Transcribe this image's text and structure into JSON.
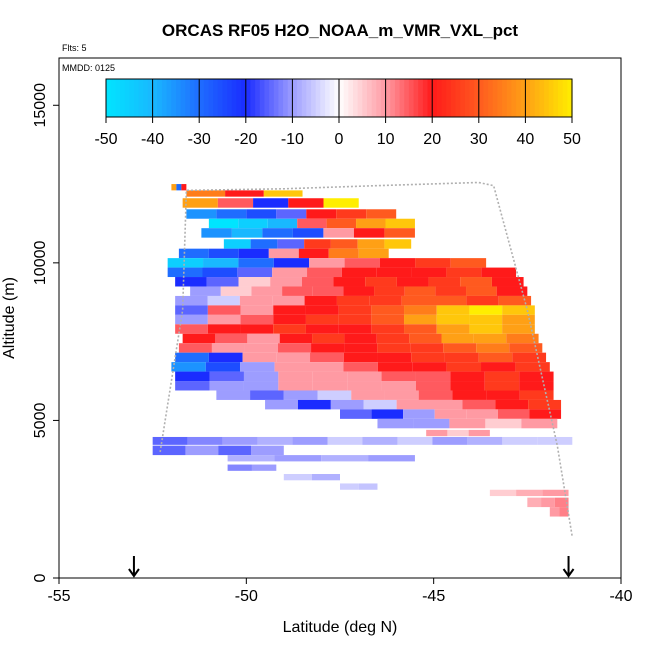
{
  "chart_data": {
    "type": "heatmap",
    "title": "ORCAS RF05 H2O_NOAA_m_VMR_VXL_pct",
    "subtitle_flights": "Flts: 5",
    "subtitle_date": "MMDD: 0125",
    "xlabel": "Latitude (deg N)",
    "ylabel": "Altitude (m)",
    "xlim": [
      -55,
      -40
    ],
    "ylim": [
      0,
      16500
    ],
    "x_ticks": [
      -55,
      -50,
      -45,
      -40
    ],
    "y_ticks": [
      0,
      5000,
      10000,
      15000
    ],
    "x_tick_labels": [
      "-55",
      "-50",
      "-45",
      "-40"
    ],
    "y_tick_labels": [
      "0",
      "5000",
      "10000",
      "15000"
    ],
    "colorbar": {
      "range": [
        -50,
        50
      ],
      "ticks": [
        -50,
        -40,
        -30,
        -20,
        -10,
        0,
        10,
        20,
        30,
        40,
        50
      ],
      "tick_labels": [
        "-50",
        "-40",
        "-30",
        "-20",
        "-10",
        "0",
        "10",
        "20",
        "30",
        "40",
        "50"
      ],
      "stops": [
        {
          "v": -50,
          "c": "#00e5ff"
        },
        {
          "v": -40,
          "c": "#19b8ff"
        },
        {
          "v": -30,
          "c": "#1f6dff"
        },
        {
          "v": -20,
          "c": "#1a2cff"
        },
        {
          "v": -10,
          "c": "#9d9dff"
        },
        {
          "v": 0,
          "c": "#ffffff"
        },
        {
          "v": 10,
          "c": "#ff9aa3"
        },
        {
          "v": 20,
          "c": "#ff1a1a"
        },
        {
          "v": 30,
          "c": "#ff5a1f"
        },
        {
          "v": 40,
          "c": "#ffa015"
        },
        {
          "v": 50,
          "c": "#ffee00"
        }
      ]
    },
    "arrows_lat": [
      -53,
      -41.4
    ],
    "flight_track": [
      [
        -52.3,
        4000
      ],
      [
        -51.7,
        8500
      ],
      [
        -51.6,
        12300
      ],
      [
        -49.0,
        12350
      ],
      [
        -46.5,
        12450
      ],
      [
        -43.8,
        12550
      ],
      [
        -43.4,
        12450
      ],
      [
        -42.5,
        8500
      ],
      [
        -41.7,
        4200
      ],
      [
        -41.3,
        1300
      ]
    ],
    "legs": [
      {
        "lat": [
          -52.0,
          -51.6
        ],
        "alt": 12400,
        "dh": 200,
        "values": [
          40,
          -30,
          20
        ]
      },
      {
        "lat": [
          -51.6,
          -48.5
        ],
        "alt": 12200,
        "dh": 200,
        "values": [
          35,
          20,
          45
        ]
      },
      {
        "lat": [
          -51.7,
          -47.0
        ],
        "alt": 11900,
        "dh": 300,
        "values": [
          40,
          15,
          -20,
          20,
          50
        ]
      },
      {
        "lat": [
          -51.6,
          -46.0
        ],
        "alt": 11550,
        "dh": 300,
        "values": [
          -35,
          -30,
          -25,
          -15,
          20,
          25,
          30
        ]
      },
      {
        "lat": [
          -51.0,
          -45.5
        ],
        "alt": 11250,
        "dh": 300,
        "values": [
          -50,
          -45,
          -40,
          15,
          30,
          40,
          45
        ]
      },
      {
        "lat": [
          -51.2,
          -45.5
        ],
        "alt": 10950,
        "dh": 300,
        "values": [
          -35,
          -40,
          -30,
          -25,
          10,
          20,
          30
        ]
      },
      {
        "lat": [
          -50.6,
          -45.6
        ],
        "alt": 10600,
        "dh": 300,
        "values": [
          -45,
          -30,
          -15,
          25,
          30,
          40,
          45
        ]
      },
      {
        "lat": [
          -51.8,
          -46.2
        ],
        "alt": 10300,
        "dh": 300,
        "values": [
          -30,
          -25,
          -20,
          10,
          20,
          35,
          40
        ]
      },
      {
        "lat": [
          -52.1,
          -43.6
        ],
        "alt": 10000,
        "dh": 300,
        "values": [
          -45,
          -40,
          -30,
          -20,
          10,
          15,
          20,
          25,
          30
        ]
      },
      {
        "lat": [
          -52.1,
          -42.8
        ],
        "alt": 9700,
        "dh": 300,
        "values": [
          -30,
          -25,
          -15,
          10,
          15,
          20,
          20,
          20,
          25,
          20
        ]
      },
      {
        "lat": [
          -51.9,
          -42.6
        ],
        "alt": 9400,
        "dh": 300,
        "values": [
          -20,
          -15,
          5,
          10,
          15,
          20,
          25,
          20,
          25,
          30,
          20
        ]
      },
      {
        "lat": [
          -51.5,
          -42.5
        ],
        "alt": 9100,
        "dh": 300,
        "values": [
          -10,
          5,
          10,
          15,
          15,
          20,
          25,
          30,
          25,
          30,
          20
        ]
      },
      {
        "lat": [
          -51.9,
          -42.4
        ],
        "alt": 8800,
        "dh": 300,
        "values": [
          -10,
          -5,
          10,
          10,
          20,
          25,
          25,
          30,
          30,
          25,
          30
        ]
      },
      {
        "lat": [
          -51.9,
          -42.3
        ],
        "alt": 8500,
        "dh": 300,
        "values": [
          -15,
          15,
          10,
          20,
          20,
          25,
          30,
          35,
          45,
          50,
          45
        ]
      },
      {
        "lat": [
          -51.9,
          -42.3
        ],
        "alt": 8200,
        "dh": 300,
        "values": [
          -10,
          10,
          15,
          20,
          25,
          25,
          30,
          40,
          45,
          45,
          40
        ]
      },
      {
        "lat": [
          -51.9,
          -42.3
        ],
        "alt": 7900,
        "dh": 300,
        "values": [
          15,
          20,
          20,
          25,
          20,
          20,
          25,
          30,
          40,
          45,
          40
        ]
      },
      {
        "lat": [
          -51.7,
          -42.2
        ],
        "alt": 7600,
        "dh": 300,
        "values": [
          20,
          15,
          10,
          20,
          25,
          20,
          25,
          30,
          40,
          40,
          35
        ]
      },
      {
        "lat": [
          -51.8,
          -42.1
        ],
        "alt": 7300,
        "dh": 300,
        "values": [
          15,
          10,
          10,
          15,
          20,
          20,
          25,
          25,
          30,
          35,
          30
        ]
      },
      {
        "lat": [
          -51.9,
          -42.0
        ],
        "alt": 7000,
        "dh": 300,
        "values": [
          -30,
          -20,
          10,
          10,
          15,
          20,
          20,
          25,
          25,
          30,
          25
        ]
      },
      {
        "lat": [
          -52.0,
          -41.9
        ],
        "alt": 6700,
        "dh": 300,
        "values": [
          -35,
          -25,
          -10,
          10,
          10,
          15,
          20,
          20,
          25,
          20,
          25
        ]
      },
      {
        "lat": [
          -51.9,
          -41.8
        ],
        "alt": 6400,
        "dh": 300,
        "values": [
          -20,
          -15,
          -10,
          10,
          10,
          10,
          15,
          15,
          20,
          25,
          20
        ]
      },
      {
        "lat": [
          -51.9,
          -41.8
        ],
        "alt": 6100,
        "dh": 300,
        "values": [
          -15,
          -10,
          -10,
          10,
          10,
          10,
          10,
          15,
          20,
          25,
          20
        ]
      },
      {
        "lat": [
          -50.8,
          -41.8
        ],
        "alt": 5800,
        "dh": 300,
        "values": [
          -10,
          -15,
          -10,
          -5,
          10,
          10,
          15,
          20,
          20,
          25
        ]
      },
      {
        "lat": [
          -49.5,
          -41.6
        ],
        "alt": 5500,
        "dh": 300,
        "values": [
          -10,
          -20,
          -10,
          -5,
          10,
          10,
          15,
          20,
          25
        ]
      },
      {
        "lat": [
          -47.5,
          -41.6
        ],
        "alt": 5200,
        "dh": 300,
        "values": [
          -15,
          -20,
          -10,
          10,
          10,
          15,
          20
        ]
      },
      {
        "lat": [
          -46.5,
          -41.7
        ],
        "alt": 4900,
        "dh": 300,
        "values": [
          -10,
          -10,
          10,
          5,
          10
        ]
      },
      {
        "lat": [
          -45.2,
          -43.5
        ],
        "alt": 4600,
        "dh": 200,
        "values": [
          10,
          5,
          10
        ]
      },
      {
        "lat": [
          -52.5,
          -41.3
        ],
        "alt": 4350,
        "dh": 250,
        "values": [
          -15,
          -12,
          -10,
          -8,
          -10,
          -5,
          -8,
          -5,
          -10,
          -8,
          -5,
          -5
        ]
      },
      {
        "lat": [
          -52.5,
          -49.0
        ],
        "alt": 4050,
        "dh": 300,
        "values": [
          -15,
          -10,
          -15,
          -10
        ]
      },
      {
        "lat": [
          -50.5,
          -45.5
        ],
        "alt": 3800,
        "dh": 200,
        "values": [
          -8,
          -10,
          -8,
          -10
        ]
      },
      {
        "lat": [
          -50.5,
          -49.2
        ],
        "alt": 3500,
        "dh": 200,
        "values": [
          -12,
          -10
        ]
      },
      {
        "lat": [
          -49.0,
          -47.5
        ],
        "alt": 3200,
        "dh": 200,
        "values": [
          -5,
          -8
        ]
      },
      {
        "lat": [
          -47.5,
          -46.5
        ],
        "alt": 2900,
        "dh": 200,
        "values": [
          -5,
          -6
        ]
      },
      {
        "lat": [
          -43.5,
          -41.4
        ],
        "alt": 2700,
        "dh": 200,
        "values": [
          5,
          8,
          10
        ]
      },
      {
        "lat": [
          -42.5,
          -41.4
        ],
        "alt": 2400,
        "dh": 300,
        "values": [
          8,
          10,
          12
        ]
      },
      {
        "lat": [
          -41.9,
          -41.4
        ],
        "alt": 2100,
        "dh": 300,
        "values": [
          10,
          12
        ]
      }
    ]
  }
}
